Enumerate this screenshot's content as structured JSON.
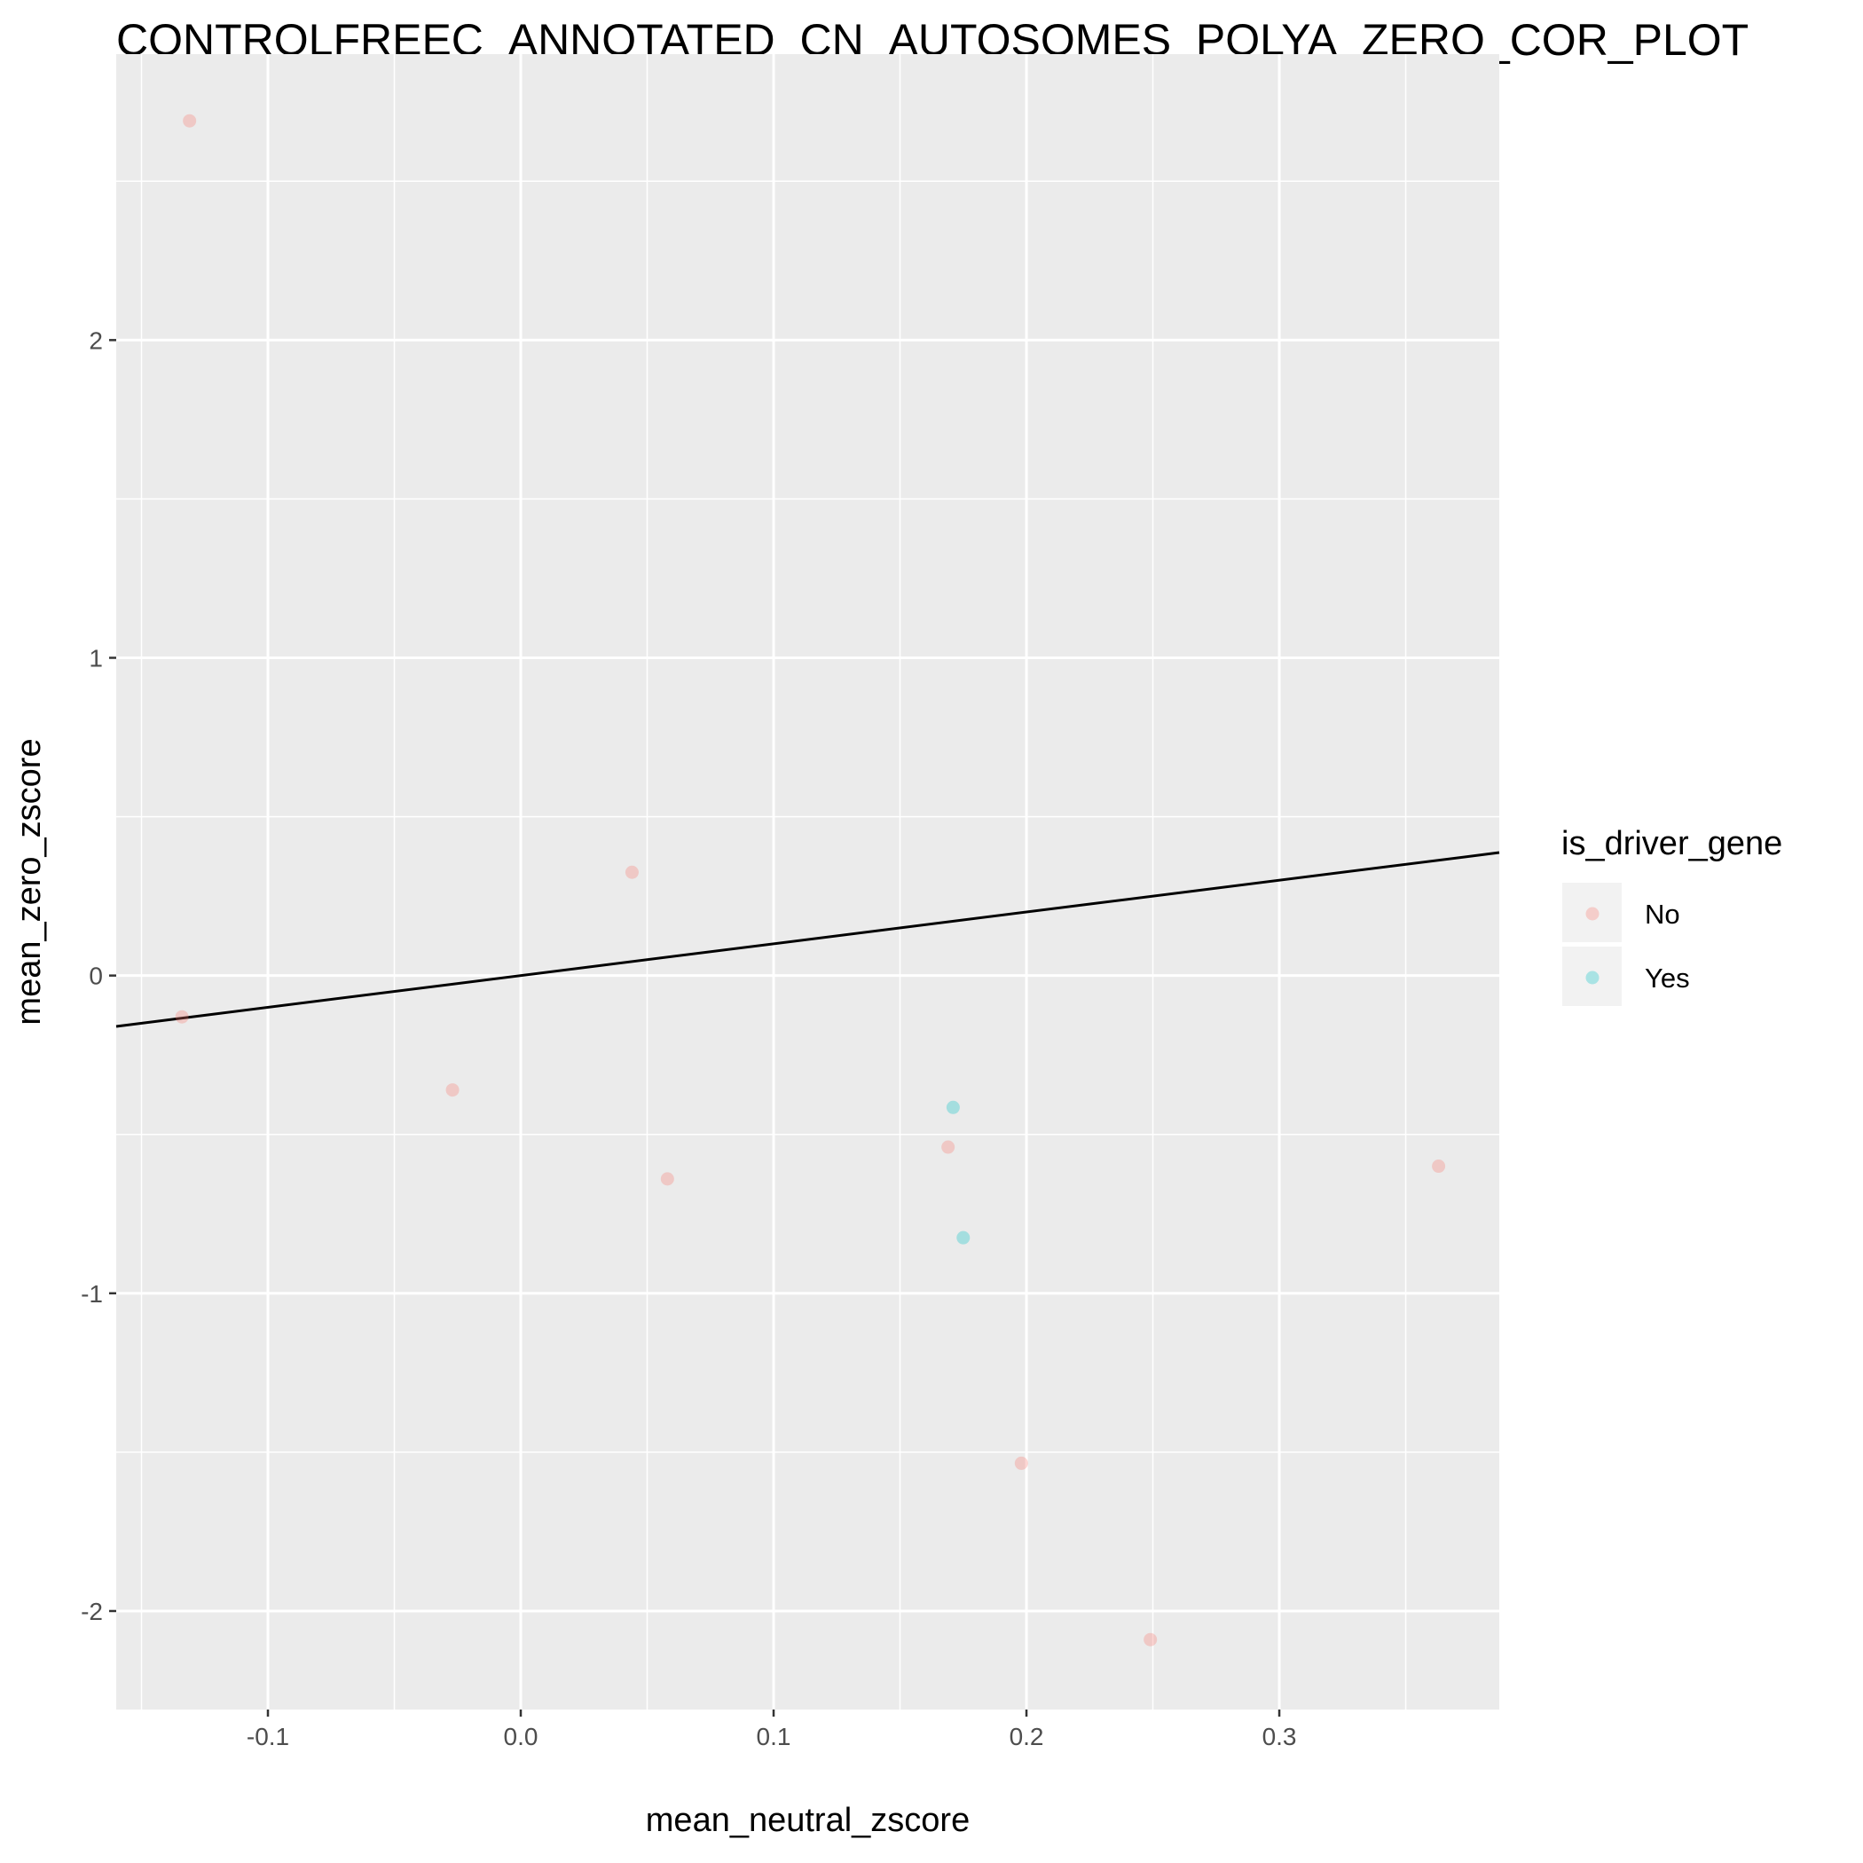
{
  "chart_data": {
    "type": "scatter",
    "title": "CONTROLFREEC_ANNOTATED_CN_AUTOSOMES_POLYA_ZERO_COR_PLOT",
    "xlabel": "mean_neutral_zscore",
    "ylabel": "mean_zero_zscore",
    "xlim": [
      -0.16,
      0.387
    ],
    "ylim": [
      -2.31,
      2.9
    ],
    "x_ticks": [
      -0.1,
      0.0,
      0.1,
      0.2,
      0.3
    ],
    "x_tick_labels": [
      "-0.1",
      "0.0",
      "0.1",
      "0.2",
      "0.3"
    ],
    "y_ticks": [
      -2,
      -1,
      0,
      1,
      2
    ],
    "y_tick_labels": [
      "-2",
      "-1",
      "0",
      "1",
      "2"
    ],
    "grid": true,
    "legend": {
      "title": "is_driver_gene",
      "placement": "right",
      "entries": [
        {
          "label": "No",
          "color": "#F8766D"
        },
        {
          "label": "Yes",
          "color": "#00BFC4"
        }
      ]
    },
    "series": [
      {
        "name": "No",
        "color": "#F8766D",
        "points": [
          [
            -0.131,
            2.69
          ],
          [
            -0.134,
            -0.13
          ],
          [
            -0.027,
            -0.36
          ],
          [
            0.044,
            0.325
          ],
          [
            0.058,
            -0.64
          ],
          [
            0.169,
            -0.54
          ],
          [
            0.198,
            -1.535
          ],
          [
            0.249,
            -2.09
          ],
          [
            0.363,
            -0.6
          ]
        ]
      },
      {
        "name": "Yes",
        "color": "#00BFC4",
        "points": [
          [
            0.171,
            -0.415
          ],
          [
            0.175,
            -0.825
          ]
        ]
      }
    ],
    "fit_line": {
      "slope": 1.0,
      "intercept": 0.0,
      "color": "#000000"
    }
  }
}
